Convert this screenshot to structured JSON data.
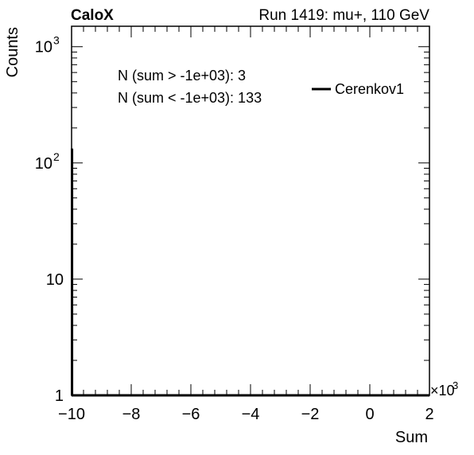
{
  "header": {
    "left_title": "CaloX",
    "right_title": "Run 1419: mu+, 110 GeV"
  },
  "annotations": [
    "N (sum > -1e+03): 3",
    "N (sum < -1e+03): 133"
  ],
  "chart_data": {
    "type": "histogram",
    "xlabel": "Sum",
    "ylabel": "Counts",
    "x_multiplier_label": "×10",
    "x_multiplier_exponent": "3",
    "xlim": [
      -10,
      2
    ],
    "ylim": [
      1,
      1500
    ],
    "y_scale": "log",
    "x_ticks": [
      {
        "value": -10,
        "label": "−10"
      },
      {
        "value": -8,
        "label": "−8"
      },
      {
        "value": -6,
        "label": "−6"
      },
      {
        "value": -4,
        "label": "−4"
      },
      {
        "value": -2,
        "label": "−2"
      },
      {
        "value": 0,
        "label": "0"
      },
      {
        "value": 2,
        "label": "2"
      }
    ],
    "y_ticks": [
      {
        "value": 1,
        "base": "1",
        "exp": ""
      },
      {
        "value": 10,
        "base": "10",
        "exp": ""
      },
      {
        "value": 100,
        "base": "10",
        "exp": "2"
      },
      {
        "value": 1000,
        "base": "10",
        "exp": "3"
      }
    ],
    "series": [
      {
        "name": "Cerenkov1",
        "color": "#000000",
        "bins": [
          {
            "x": -9.985,
            "count": 133
          },
          {
            "x": 0.02,
            "count": 1
          },
          {
            "x": 0.1,
            "count": 1
          },
          {
            "x": 0.3,
            "count": 1
          }
        ]
      }
    ],
    "legend_position": "top-right",
    "grid": false
  }
}
